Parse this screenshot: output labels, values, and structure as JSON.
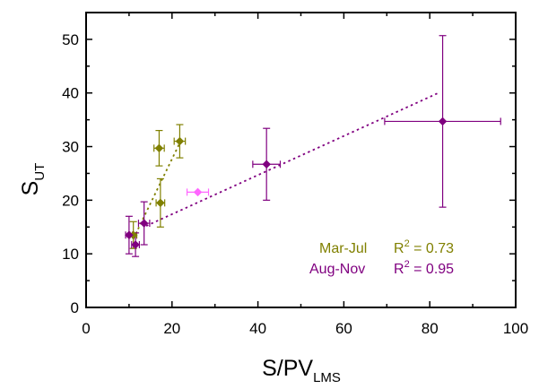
{
  "chart_data": {
    "type": "scatter",
    "xlabel_main": "S/PV",
    "xlabel_sub": "LMS",
    "ylabel_main": "S",
    "ylabel_sub": "UT",
    "xlim": [
      0,
      100
    ],
    "ylim": [
      0,
      55
    ],
    "x_ticks": [
      0,
      20,
      40,
      60,
      80,
      100
    ],
    "y_ticks": [
      0,
      10,
      20,
      30,
      40,
      50
    ],
    "x_minor_step": 10,
    "y_minor_step": 5,
    "colors": {
      "mar_jul": "#808000",
      "aug_nov": "#800080",
      "highlight": "#ff66ff"
    },
    "series": [
      {
        "name": "Mar-Jul",
        "color_key": "mar_jul",
        "points": [
          {
            "x": 11.0,
            "y": 13.5,
            "xerr": 0.8,
            "yerr": 2.5
          },
          {
            "x": 17.0,
            "y": 29.7,
            "xerr": 1.2,
            "yerr": 3.3
          },
          {
            "x": 17.3,
            "y": 19.5,
            "xerr": 1.0,
            "yerr": 4.5
          },
          {
            "x": 21.8,
            "y": 31.0,
            "xerr": 1.3,
            "yerr": 3.1
          }
        ],
        "fit": {
          "x": [
            11.0,
            22.0
          ],
          "y": [
            12.8,
            31.0
          ]
        }
      },
      {
        "name": "Aug-Nov",
        "color_key": "aug_nov",
        "points": [
          {
            "x": 10.0,
            "y": 13.5,
            "xerr": 0.8,
            "yerr": 3.5
          },
          {
            "x": 11.5,
            "y": 11.7,
            "xerr": 0.9,
            "yerr": 2.2
          },
          {
            "x": 13.5,
            "y": 15.7,
            "xerr": 1.3,
            "yerr": 4.0
          },
          {
            "x": 42.0,
            "y": 26.7,
            "xerr": 3.2,
            "yerr": 6.7
          },
          {
            "x": 83.0,
            "y": 34.7,
            "xerr": 13.5,
            "yerr": 16.0
          }
        ],
        "fit": {
          "x": [
            14.0,
            82.0
          ],
          "y": [
            15.2,
            40.0
          ]
        }
      },
      {
        "name": "",
        "color_key": "highlight",
        "points": [
          {
            "x": 26.0,
            "y": 21.5,
            "xerr": 2.5,
            "yerr": 0
          }
        ]
      }
    ],
    "legend": [
      {
        "label": "Mar-Jul",
        "stat": "R",
        "power": "2",
        "value": " = 0.73",
        "color_key": "mar_jul"
      },
      {
        "label": "Aug-Nov",
        "stat": "R",
        "power": "2",
        "value": " = 0.95",
        "color_key": "aug_nov"
      }
    ],
    "legend_position": "bottom-right"
  }
}
